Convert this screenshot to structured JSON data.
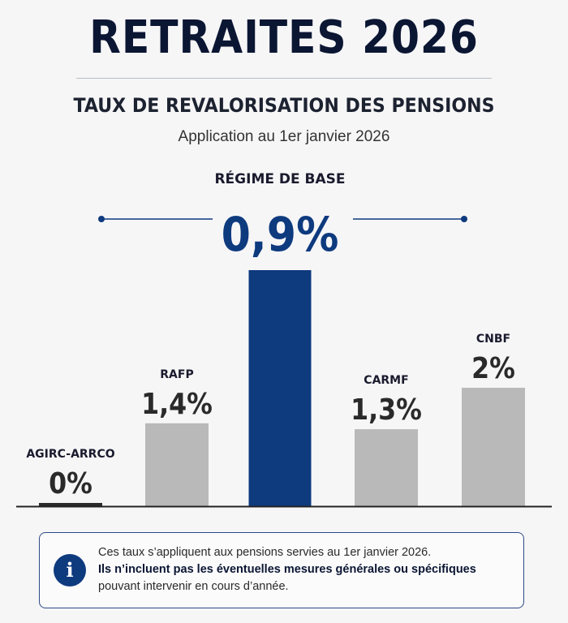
{
  "header": {
    "title": "RETRAITES 2026",
    "subtitle": "TAUX DE REVALORISATION DES PENSIONS",
    "date": "Application au 1er janvier 2026"
  },
  "chart_data": {
    "type": "bar",
    "title": "TAUX DE REVALORISATION DES PENSIONS",
    "categories": [
      "AGIRC-ARRCO",
      "RAFP",
      "RÉGIME DE BASE",
      "CARMF",
      "CNBF"
    ],
    "values": [
      0,
      1.4,
      0.9,
      1.3,
      2
    ],
    "value_labels": [
      "0%",
      "1,4%",
      "0,9%",
      "1,3%",
      "2%"
    ],
    "highlight": "RÉGIME DE BASE",
    "colors": {
      "default": "#b9b9b9",
      "highlight": "#0e3a7e",
      "zero": "#2b2b2b",
      "axis": "#222222"
    },
    "grid": false,
    "legend": "none"
  },
  "info": {
    "line1": "Ces taux s’appliquent aux pensions servies au 1er janvier 2026.",
    "line2": "Ils n’incluent pas les éventuelles mesures générales ou spécifiques",
    "line3": "pouvant intervenir en cours d’année.",
    "icon": "info-icon"
  }
}
